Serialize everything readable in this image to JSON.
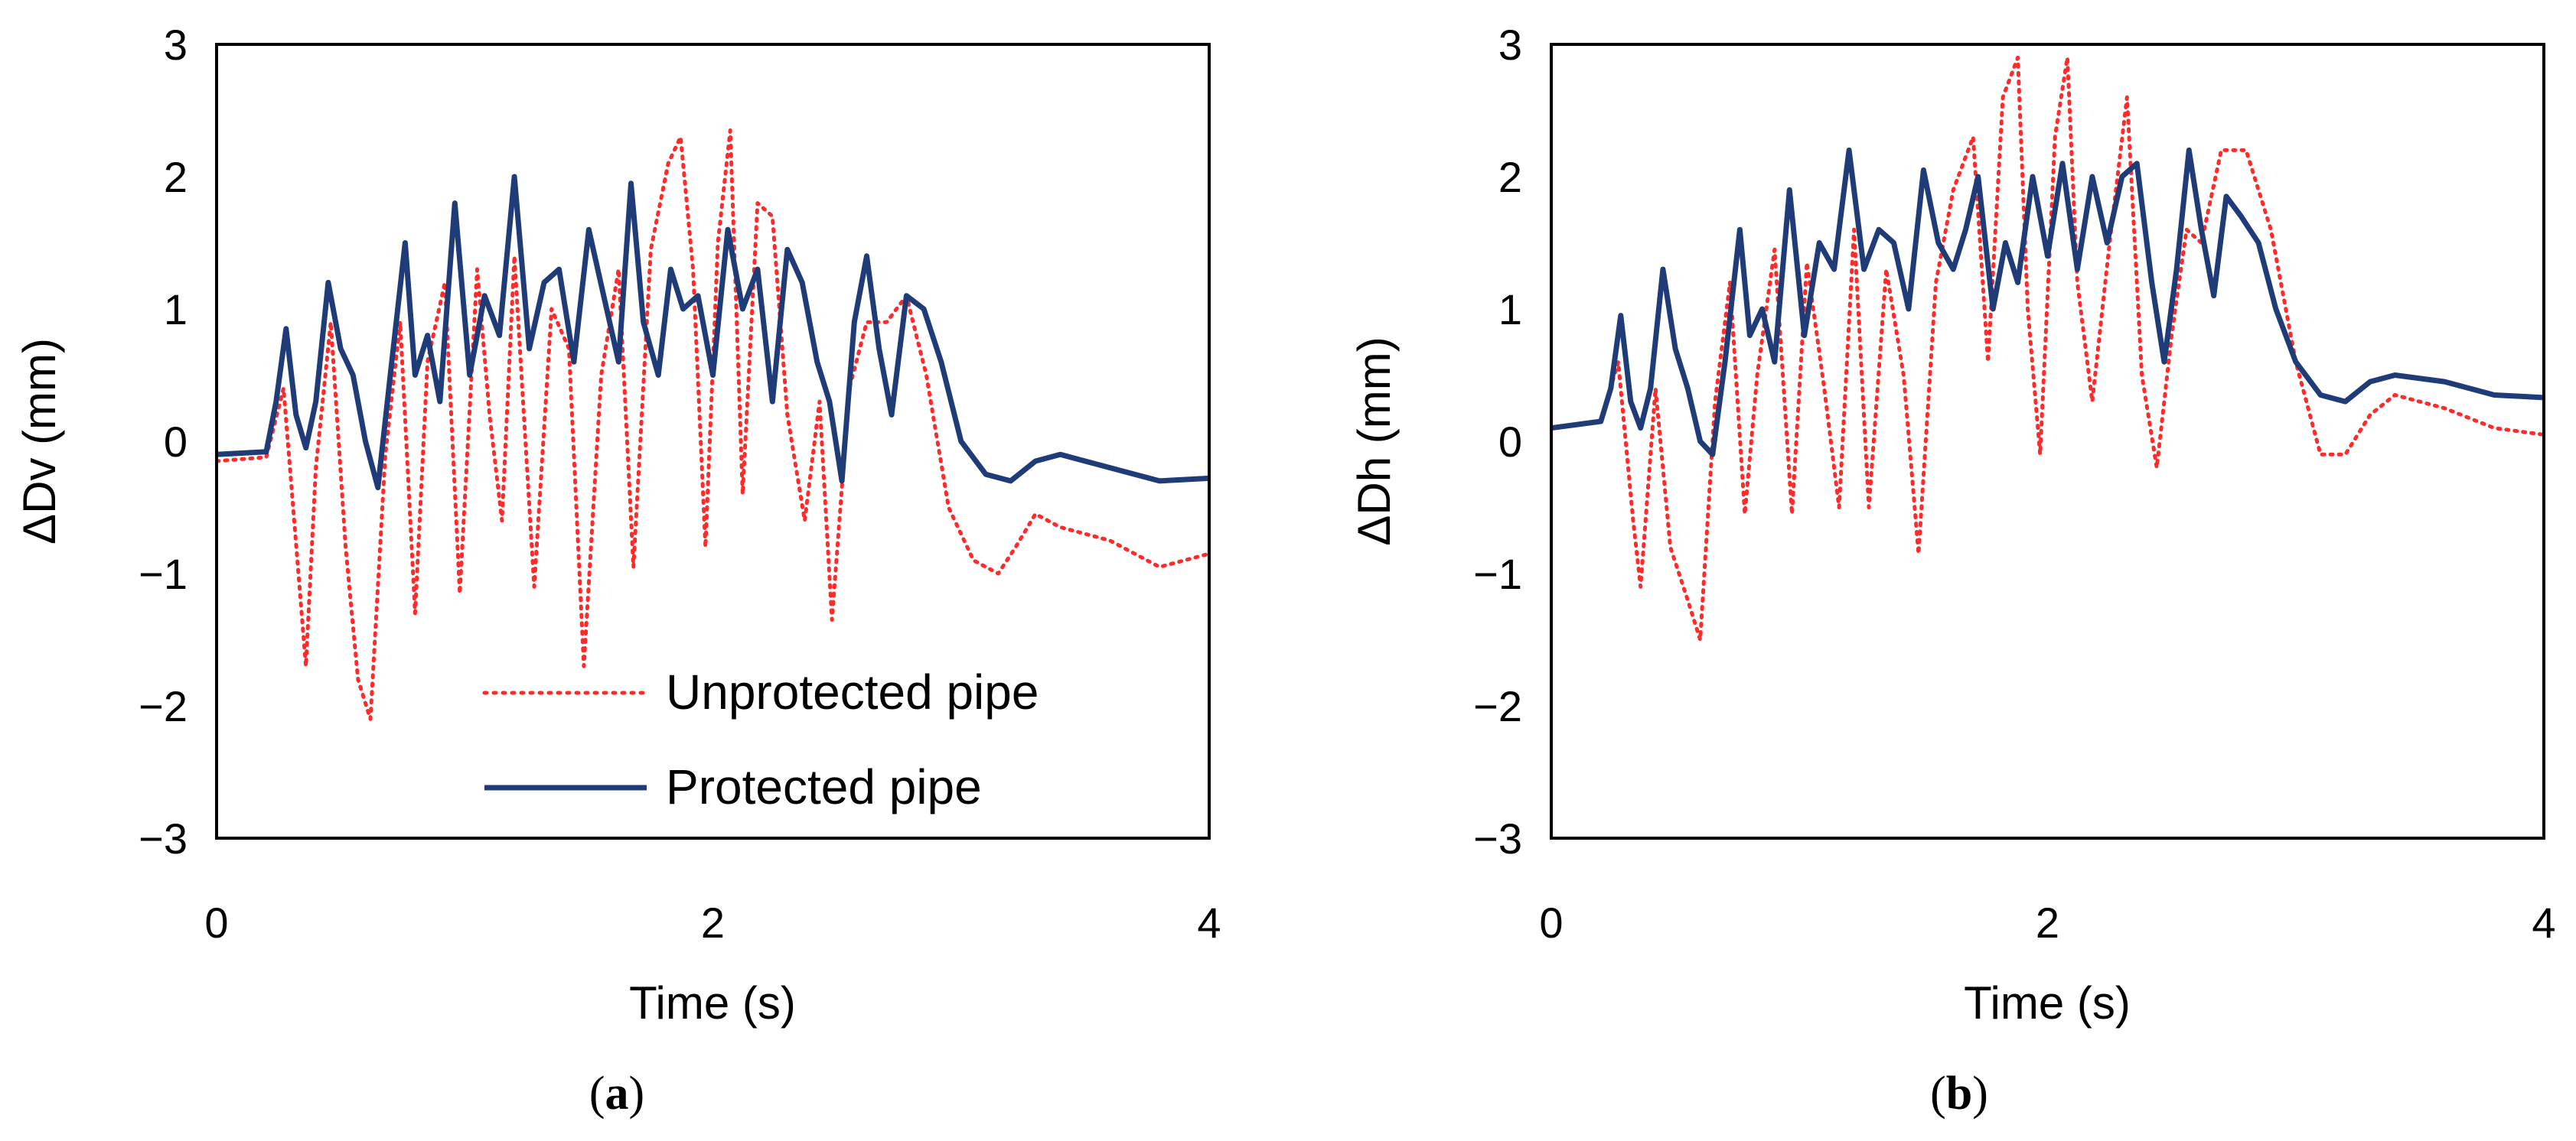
{
  "chart_data": [
    {
      "type": "line",
      "panel_label_open": "(",
      "panel_label_letter": "a",
      "panel_label_close": ")",
      "xlabel": "Time (s)",
      "ylabel": "ΔDv (mm)",
      "xlim": [
        0,
        4
      ],
      "ylim": [
        -3,
        3
      ],
      "x_ticks": [
        0,
        2,
        4
      ],
      "x_tick_labels": [
        "0",
        "2",
        "4"
      ],
      "y_ticks": [
        3,
        2,
        1,
        0,
        -1,
        -2,
        -3
      ],
      "y_tick_labels": [
        "3",
        "2",
        "1",
        "0",
        "−1",
        "−2",
        "−3"
      ],
      "grid": false,
      "legend_position": "bottom-right",
      "series": [
        {
          "name": "Unprotected pipe",
          "style": "dotted",
          "color": "#ff2a2a",
          "x": [
            0,
            0.2,
            0.27,
            0.33,
            0.36,
            0.4,
            0.46,
            0.52,
            0.57,
            0.62,
            0.68,
            0.74,
            0.8,
            0.85,
            0.92,
            0.98,
            1.05,
            1.1,
            1.15,
            1.2,
            1.28,
            1.35,
            1.42,
            1.48,
            1.55,
            1.62,
            1.68,
            1.75,
            1.82,
            1.87,
            1.92,
            1.97,
            2.02,
            2.07,
            2.12,
            2.18,
            2.24,
            2.3,
            2.37,
            2.43,
            2.48,
            2.55,
            2.62,
            2.7,
            2.78,
            2.86,
            2.95,
            3.05,
            3.15,
            3.22,
            3.3,
            3.4,
            3.6,
            3.8,
            4.0
          ],
          "y": [
            -0.15,
            -0.12,
            0.4,
            -1.0,
            -1.7,
            -0.2,
            0.9,
            -0.8,
            -1.8,
            -2.1,
            -0.1,
            0.9,
            -1.3,
            0.6,
            1.2,
            -1.15,
            1.3,
            0.2,
            -0.6,
            1.4,
            -1.1,
            1.0,
            0.7,
            -1.7,
            0.5,
            1.3,
            -0.95,
            1.45,
            2.1,
            2.3,
            1.3,
            -0.8,
            1.5,
            2.35,
            -0.4,
            1.8,
            1.7,
            0.2,
            -0.6,
            0.3,
            -1.35,
            0.4,
            0.9,
            0.9,
            1.1,
            0.5,
            -0.5,
            -0.9,
            -1.0,
            -0.8,
            -0.55,
            -0.65,
            -0.75,
            -0.95,
            -0.85
          ]
        },
        {
          "name": "Protected pipe",
          "style": "solid",
          "color": "#1f3c78",
          "x": [
            0,
            0.2,
            0.24,
            0.28,
            0.32,
            0.36,
            0.4,
            0.45,
            0.5,
            0.55,
            0.6,
            0.65,
            0.7,
            0.76,
            0.8,
            0.85,
            0.9,
            0.96,
            1.02,
            1.08,
            1.14,
            1.2,
            1.26,
            1.32,
            1.38,
            1.44,
            1.5,
            1.56,
            1.62,
            1.67,
            1.72,
            1.78,
            1.83,
            1.88,
            1.94,
            2.0,
            2.06,
            2.12,
            2.18,
            2.24,
            2.3,
            2.36,
            2.42,
            2.47,
            2.52,
            2.57,
            2.62,
            2.67,
            2.72,
            2.78,
            2.85,
            2.92,
            3.0,
            3.1,
            3.2,
            3.3,
            3.4,
            3.6,
            3.8,
            4.0
          ],
          "y": [
            -0.1,
            -0.08,
            0.3,
            0.85,
            0.2,
            -0.05,
            0.3,
            1.2,
            0.7,
            0.5,
            0.0,
            -0.35,
            0.5,
            1.5,
            0.5,
            0.8,
            0.3,
            1.8,
            0.5,
            1.1,
            0.8,
            2.0,
            0.7,
            1.2,
            1.3,
            0.6,
            1.6,
            1.1,
            0.6,
            1.95,
            0.9,
            0.5,
            1.3,
            1.0,
            1.1,
            0.5,
            1.6,
            1.0,
            1.3,
            0.3,
            1.45,
            1.2,
            0.6,
            0.3,
            -0.3,
            0.9,
            1.4,
            0.7,
            0.2,
            1.1,
            1.0,
            0.6,
            0.0,
            -0.25,
            -0.3,
            -0.15,
            -0.1,
            -0.2,
            -0.3,
            -0.28
          ]
        }
      ]
    },
    {
      "type": "line",
      "panel_label_open": "(",
      "panel_label_letter": "b",
      "panel_label_close": ")",
      "xlabel": "Time (s)",
      "ylabel": "ΔDh (mm)",
      "xlim": [
        0,
        4
      ],
      "ylim": [
        -3,
        3
      ],
      "x_ticks": [
        0,
        2,
        4
      ],
      "x_tick_labels": [
        "0",
        "2",
        "4"
      ],
      "y_ticks": [
        3,
        2,
        1,
        0,
        -1,
        -2,
        -3
      ],
      "y_tick_labels": [
        "3",
        "2",
        "1",
        "0",
        "−1",
        "−2",
        "−3"
      ],
      "grid": false,
      "series": [
        {
          "name": "Unprotected pipe",
          "style": "dotted",
          "color": "#ff2a2a",
          "x": [
            0,
            0.2,
            0.27,
            0.33,
            0.36,
            0.42,
            0.48,
            0.55,
            0.6,
            0.66,
            0.72,
            0.78,
            0.83,
            0.9,
            0.97,
            1.03,
            1.1,
            1.16,
            1.22,
            1.28,
            1.35,
            1.42,
            1.48,
            1.55,
            1.62,
            1.7,
            1.76,
            1.82,
            1.88,
            1.92,
            1.97,
            2.03,
            2.08,
            2.12,
            2.18,
            2.25,
            2.32,
            2.38,
            2.44,
            2.5,
            2.56,
            2.62,
            2.7,
            2.8,
            2.9,
            3.0,
            3.1,
            3.2,
            3.3,
            3.4,
            3.6,
            3.8,
            4.0
          ],
          "y": [
            0.1,
            0.15,
            0.6,
            -0.6,
            -1.1,
            0.4,
            -0.8,
            -1.2,
            -1.5,
            0.3,
            1.2,
            -0.55,
            0.5,
            1.45,
            -0.55,
            1.35,
            0.4,
            -0.5,
            1.6,
            -0.5,
            1.3,
            0.5,
            -0.85,
            1.2,
            1.9,
            2.3,
            0.6,
            2.6,
            2.9,
            1.0,
            -0.1,
            2.3,
            2.9,
            1.2,
            0.3,
            1.5,
            2.6,
            0.5,
            -0.2,
            0.8,
            1.6,
            1.5,
            2.2,
            2.2,
            1.6,
            0.6,
            -0.1,
            -0.1,
            0.2,
            0.35,
            0.25,
            0.1,
            0.05
          ]
        },
        {
          "name": "Protected pipe",
          "style": "solid",
          "color": "#1f3c78",
          "x": [
            0,
            0.2,
            0.24,
            0.28,
            0.32,
            0.36,
            0.4,
            0.45,
            0.5,
            0.55,
            0.6,
            0.65,
            0.7,
            0.76,
            0.8,
            0.85,
            0.9,
            0.96,
            1.02,
            1.08,
            1.14,
            1.2,
            1.26,
            1.32,
            1.38,
            1.44,
            1.5,
            1.56,
            1.62,
            1.67,
            1.72,
            1.78,
            1.83,
            1.88,
            1.94,
            2.0,
            2.06,
            2.12,
            2.18,
            2.24,
            2.3,
            2.36,
            2.42,
            2.47,
            2.52,
            2.57,
            2.62,
            2.67,
            2.72,
            2.78,
            2.85,
            2.92,
            3.0,
            3.1,
            3.2,
            3.3,
            3.4,
            3.6,
            3.8,
            4.0
          ],
          "y": [
            0.1,
            0.15,
            0.4,
            0.95,
            0.3,
            0.1,
            0.4,
            1.3,
            0.7,
            0.4,
            0.0,
            -0.1,
            0.6,
            1.6,
            0.8,
            1.0,
            0.6,
            1.9,
            0.8,
            1.5,
            1.3,
            2.2,
            1.3,
            1.6,
            1.5,
            1.0,
            2.05,
            1.5,
            1.3,
            1.6,
            2.0,
            1.0,
            1.5,
            1.2,
            2.0,
            1.4,
            2.1,
            1.3,
            2.0,
            1.5,
            2.0,
            2.1,
            1.2,
            0.6,
            1.3,
            2.2,
            1.6,
            1.1,
            1.85,
            1.7,
            1.5,
            1.0,
            0.6,
            0.35,
            0.3,
            0.45,
            0.5,
            0.45,
            0.35,
            0.33
          ]
        }
      ]
    }
  ]
}
